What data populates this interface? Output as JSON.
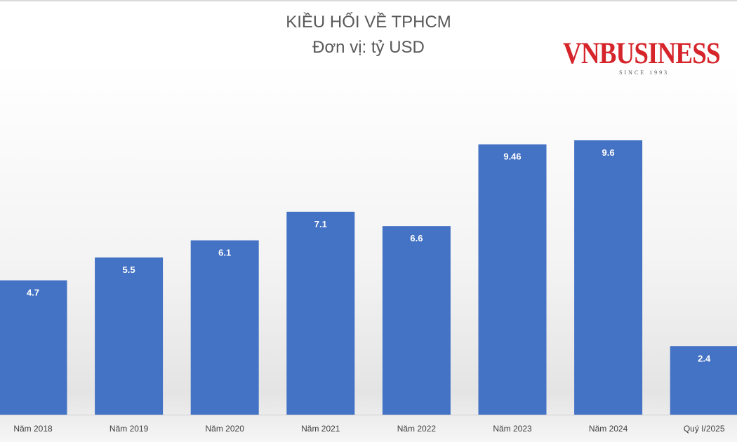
{
  "chart_data": {
    "type": "bar",
    "title": "KIỀU HỐI VỀ TPHCM",
    "subtitle": "Đơn vị: tỷ USD",
    "categories": [
      "Năm 2018",
      "Năm 2019",
      "Năm 2020",
      "Năm 2021",
      "Năm 2022",
      "Năm 2023",
      "Năm 2024",
      "Quý I/2025"
    ],
    "values": [
      4.7,
      5.5,
      6.1,
      7.1,
      6.6,
      9.46,
      9.6,
      2.4
    ],
    "value_labels": [
      "4.7",
      "5.5",
      "6.1",
      "7.1",
      "6.6",
      "9.46",
      "9.6",
      "2.4"
    ],
    "ylim": [
      0,
      9.6
    ],
    "grid": false,
    "bar_color": "#4472c4"
  },
  "logo": {
    "text": "VNBUSINESS",
    "since": "SINCE 1993"
  }
}
